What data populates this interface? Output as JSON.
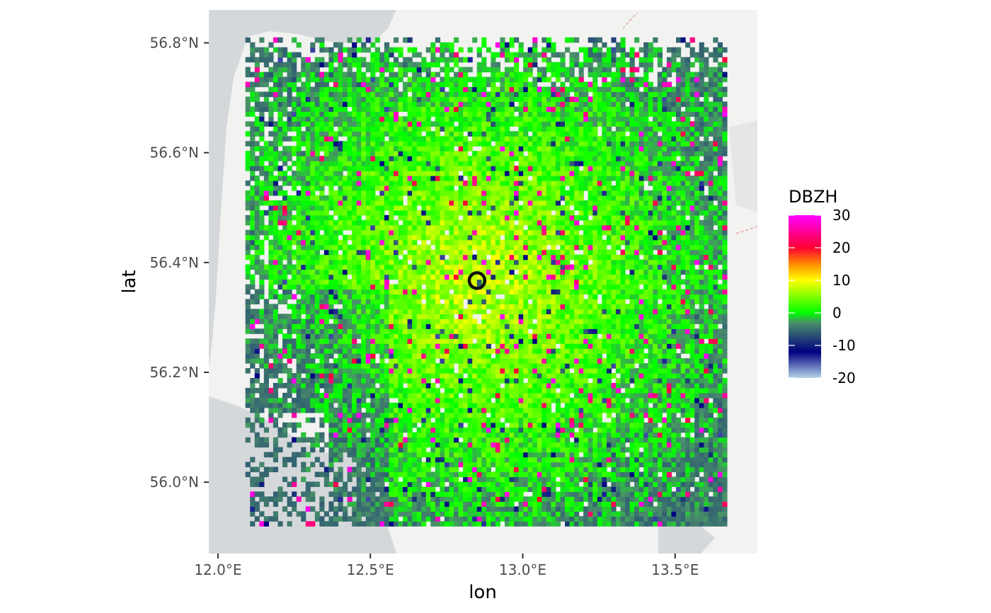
{
  "chart_data": {
    "type": "heatmap",
    "title": "",
    "xlabel": "lon",
    "ylabel": "lat",
    "x_ticks": [
      "12.0°E",
      "12.5°E",
      "13.0°E",
      "13.5°E"
    ],
    "x_tick_values": [
      12.0,
      12.5,
      13.0,
      13.5
    ],
    "y_ticks": [
      "56.0°N",
      "56.2°N",
      "56.4°N",
      "56.6°N",
      "56.8°N"
    ],
    "y_tick_values": [
      56.0,
      56.2,
      56.4,
      56.6,
      56.8
    ],
    "xlim": [
      11.97,
      13.77
    ],
    "ylim": [
      55.87,
      56.86
    ],
    "data_extent": {
      "lon": [
        12.09,
        13.67
      ],
      "lat": [
        55.92,
        56.81
      ]
    },
    "grid": {
      "lon_cells": 104,
      "lat_cells": 99
    },
    "radar_site": {
      "lon": 12.85,
      "lat": 56.367,
      "marker": "open-circle"
    },
    "basemap": "light-grey-map",
    "description_of_values": "Reflectivity mostly between -5 and 5 dBZH with a warm (5-12) region around the radar; sparse high (20-30) cells; low (-10 to -20) isolated cells",
    "legend": {
      "title": "DBZH",
      "position": "right",
      "labels": [
        "30",
        "20",
        "10",
        "0",
        "-10",
        "-20"
      ],
      "values": [
        30,
        20,
        10,
        0,
        -10,
        -20
      ],
      "colors": [
        {
          "value": -20,
          "color": "#b4d4ea"
        },
        {
          "value": -12,
          "color": "#000080"
        },
        {
          "value": -3,
          "color": "#4a8f6a"
        },
        {
          "value": 0,
          "color": "#00ff00"
        },
        {
          "value": 10,
          "color": "#ffff00"
        },
        {
          "value": 15,
          "color": "#ff8c00"
        },
        {
          "value": 20,
          "color": "#ff0033"
        },
        {
          "value": 30,
          "color": "#ff00ff"
        }
      ]
    }
  }
}
